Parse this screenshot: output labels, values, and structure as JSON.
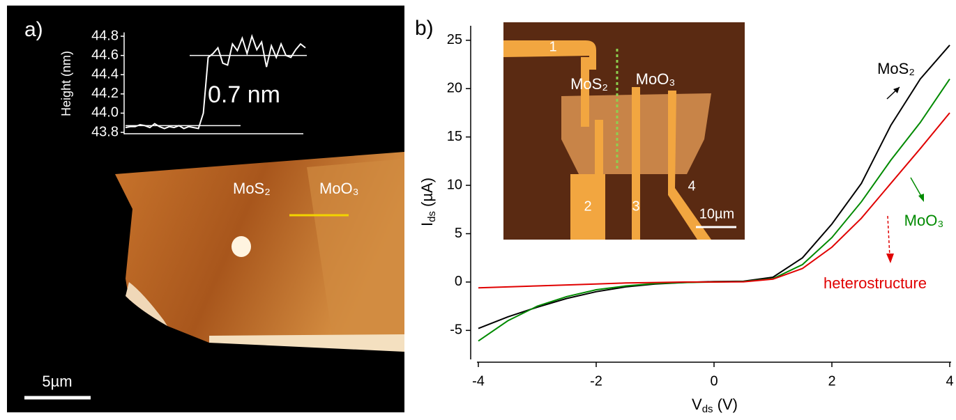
{
  "chart_data": [
    {
      "type": "line",
      "y_label": "Height (nm)",
      "annotation": "0.7 nm",
      "color": "#ffffff",
      "values": [
        43.85,
        43.86,
        43.86,
        43.88,
        43.87,
        43.85,
        43.89,
        43.86,
        43.84,
        43.86,
        43.85,
        43.87,
        43.84,
        43.86,
        43.85,
        43.84,
        44.0,
        44.58,
        44.62,
        44.68,
        44.52,
        44.5,
        44.72,
        44.65,
        44.78,
        44.62,
        44.8,
        44.66,
        44.74,
        44.48,
        44.7,
        44.58,
        44.72,
        44.6,
        44.58,
        44.66,
        44.72,
        44.68
      ],
      "ylim": [
        43.78,
        44.84
      ],
      "yticks": [
        43.8,
        {
          "value": 44,
          "label": "44.0"
        },
        44.2,
        44.4,
        44.6,
        44.8
      ],
      "reference_lines": [
        43.87,
        44.6
      ]
    },
    {
      "type": "line",
      "x_label": [
        "V",
        "ds",
        " (V)"
      ],
      "y_label": [
        "I",
        "ds",
        " (µA)"
      ],
      "x": [
        -4,
        -3.5,
        -3,
        -2.5,
        -2,
        -1.5,
        -1,
        -0.5,
        0,
        0.5,
        1,
        1.5,
        2,
        2.5,
        3,
        3.5,
        4
      ],
      "series": [
        {
          "name": "MoS₂",
          "color": "#000000",
          "values": [
            -4.8,
            -3.6,
            -2.6,
            -1.7,
            -1.0,
            -0.5,
            -0.2,
            -0.05,
            0.05,
            0.08,
            0.5,
            2.5,
            6,
            10.2,
            16.2,
            21,
            24.5
          ]
        },
        {
          "name": "MoO₃",
          "color": "#008a00",
          "values": [
            -6.1,
            -4.0,
            -2.5,
            -1.5,
            -0.8,
            -0.4,
            -0.15,
            -0.05,
            0,
            0.05,
            0.35,
            1.8,
            4.6,
            8.3,
            12.6,
            16.5,
            21
          ]
        },
        {
          "name": "heterostructure",
          "color": "#e00000",
          "values": [
            -0.6,
            -0.5,
            -0.4,
            -0.3,
            -0.2,
            -0.1,
            -0.05,
            0,
            0,
            0.02,
            0.3,
            1.4,
            3.6,
            6.6,
            10.2,
            13.8,
            17.5
          ]
        }
      ],
      "xlim": [
        -4,
        4
      ],
      "ylim": [
        -8,
        26.5
      ],
      "xticks": [
        -4,
        -2,
        0,
        2,
        4
      ],
      "yticks": [
        -5,
        0,
        5,
        10,
        15,
        20,
        25
      ]
    }
  ],
  "panel_a": {
    "label": "a)",
    "mos2": "MoS₂",
    "moo3": "MoO₃",
    "scale_bar": "5µm"
  },
  "panel_b": {
    "label": "b)",
    "inset": {
      "contact_labels": [
        "1",
        "2",
        "3",
        "4"
      ],
      "mos2": "MoS₂",
      "moo3": "MoO₃",
      "scale_bar": "10µm"
    }
  }
}
